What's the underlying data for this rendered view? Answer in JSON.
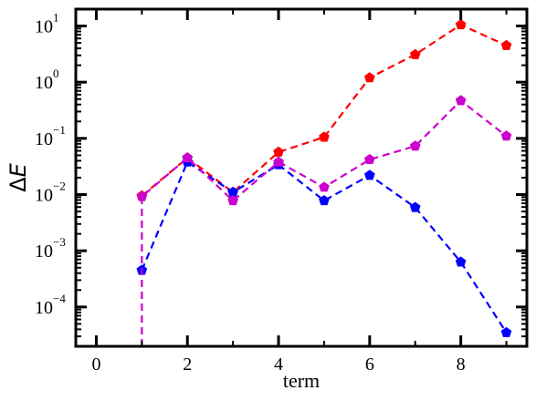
{
  "chart_data": {
    "type": "line",
    "xlabel": "term",
    "ylabel_symbol": "Δ",
    "ylabel_var": "E",
    "xlim": [
      -0.45,
      9.45
    ],
    "ylim_log10": [
      -4.7,
      1.3
    ],
    "yscale": "log",
    "x_ticks": [
      0,
      2,
      4,
      6,
      8
    ],
    "y_ticks": [
      -4,
      -3,
      -2,
      -1,
      0,
      1
    ],
    "y_tick_base": "10",
    "y_tick_exponents": [
      "−4",
      "−3",
      "−2",
      "−1",
      "0",
      "1"
    ],
    "grid": false,
    "series": [
      {
        "color": "#ff0000",
        "marker": "pentagon",
        "x": [
          1,
          2,
          3,
          4,
          5,
          6,
          7,
          8,
          9
        ],
        "y": [
          0.0095,
          0.045,
          0.011,
          0.057,
          0.105,
          1.2,
          3.1,
          10.5,
          4.5
        ]
      },
      {
        "color": "#0000ff",
        "marker": "pentagon",
        "x": [
          1,
          2,
          3,
          4,
          5,
          6,
          7,
          8,
          9
        ],
        "y": [
          0.00045,
          0.038,
          0.011,
          0.034,
          0.0078,
          0.022,
          0.0059,
          0.00063,
          3.5e-05
        ]
      },
      {
        "color": "#cc00cc",
        "marker": "pentagon",
        "x": [
          1,
          2,
          3,
          4,
          5,
          6,
          7,
          8,
          9
        ],
        "y": [
          0.0092,
          0.045,
          0.0078,
          0.038,
          0.0135,
          0.042,
          0.073,
          0.47,
          0.11
        ],
        "drop_from_x": 1
      }
    ]
  }
}
